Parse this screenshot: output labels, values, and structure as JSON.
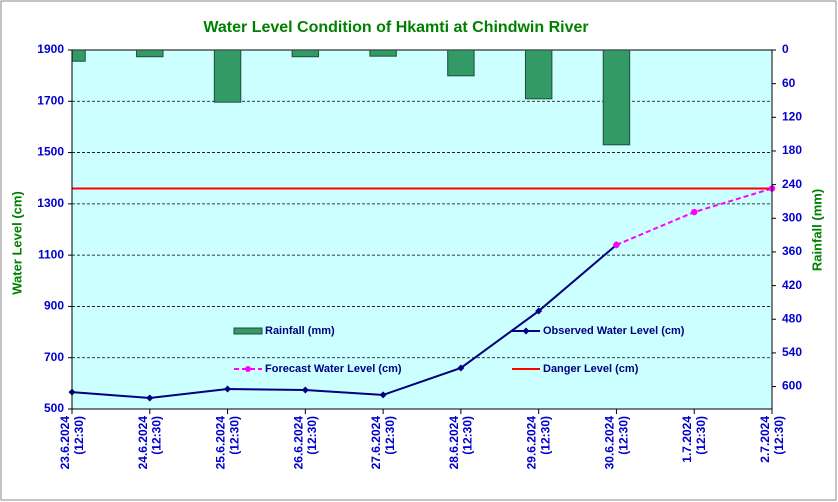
{
  "chart_data": {
    "type": "bar-line",
    "title": "Water Level Condition of Hkamti at Chindwin River",
    "y_label": "Water Level (cm)",
    "y2_label": "Rainfall (mm)",
    "categories": [
      "23.6.2024 (12:30)",
      "24.6.2024 (12:30)",
      "25.6.2024 (12:30)",
      "26.6.2024 (12:30)",
      "27.6.2024 (12:30)",
      "28.6.2024 (12:30)",
      "29.6.2024 (12:30)",
      "30.6.2024 (12:30)",
      "1.7.2024 (12:30)",
      "2.7.2024 (12:30)"
    ],
    "ylim": [
      500,
      1900
    ],
    "yticks": [
      500,
      700,
      900,
      1100,
      1300,
      1500,
      1700,
      1900
    ],
    "y2lim": [
      0,
      640
    ],
    "y2_reversed": true,
    "y2ticks": [
      0,
      60,
      120,
      180,
      240,
      300,
      360,
      420,
      480,
      540,
      600
    ],
    "grid": true,
    "series": [
      {
        "name": "Rainfall (mm)",
        "kind": "bar",
        "axis": "y2",
        "color": "#339966",
        "values": [
          20,
          12,
          93,
          12,
          11,
          46,
          87,
          169,
          null,
          null
        ]
      },
      {
        "name": "Observed Water Level (cm)",
        "kind": "line",
        "color": "#000080",
        "values": [
          566,
          543,
          578,
          574,
          555,
          660,
          882,
          1140,
          null,
          null
        ]
      },
      {
        "name": "Forecast Water Level (cm)",
        "kind": "dashed",
        "color": "#ff00ff",
        "values": [
          null,
          null,
          null,
          null,
          null,
          null,
          null,
          1140,
          1268,
          1360
        ]
      },
      {
        "name": "Danger Level (cm)",
        "kind": "plain",
        "color": "#ff0000",
        "values": [
          1360,
          1360,
          1360,
          1360,
          1360,
          1360,
          1360,
          1360,
          1360,
          1360
        ]
      }
    ]
  }
}
